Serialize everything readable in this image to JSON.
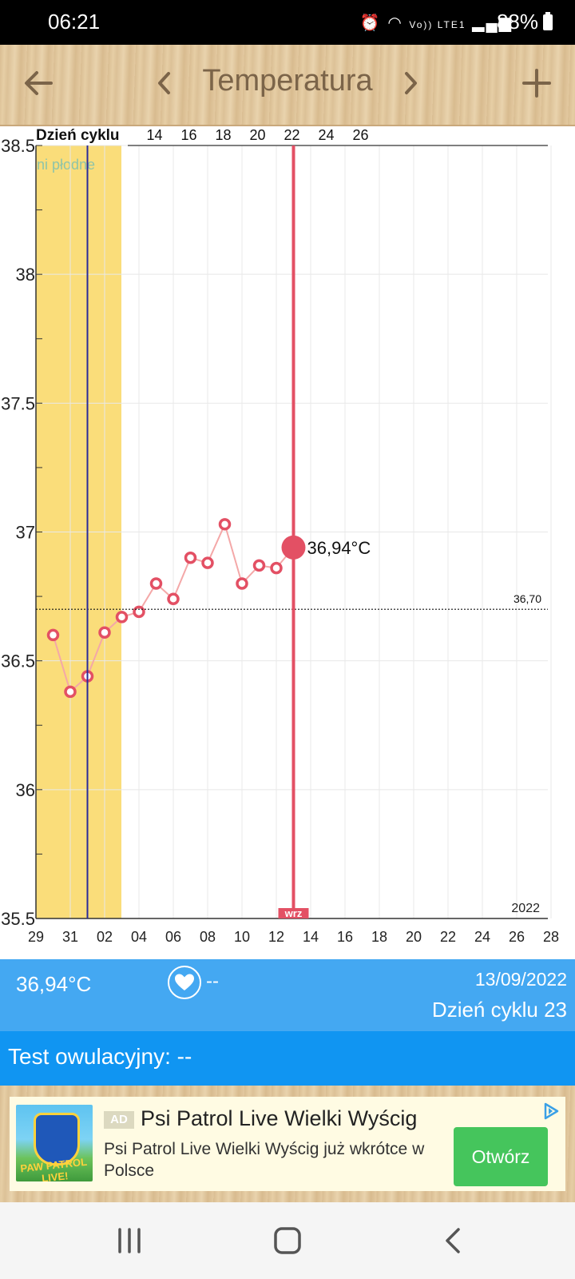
{
  "status_bar": {
    "time": "06:21",
    "network_label": "Vo)) LTE1",
    "battery": "88%"
  },
  "header": {
    "title": "Temperatura",
    "back_icon": "arrow-left-icon",
    "prev_icon": "chevron-left-icon",
    "next_icon": "chevron-right-icon",
    "add_icon": "plus-icon"
  },
  "chart_data": {
    "type": "line",
    "title": "",
    "cycle_label": "Dzień cyklu",
    "cycle_ticks": [
      "14",
      "16",
      "18",
      "20",
      "22",
      "24",
      "26"
    ],
    "fertile_label": "ni płodne",
    "x_ticks": [
      "29",
      "31",
      "02",
      "04",
      "06",
      "08",
      "10",
      "12",
      "14",
      "16",
      "18",
      "20",
      "22",
      "24",
      "26",
      "28"
    ],
    "y_ticks": [
      "35.5",
      "36",
      "36.5",
      "37",
      "37.5",
      "38",
      "38.5"
    ],
    "ylim": [
      35.5,
      38.5
    ],
    "year_label": "2022",
    "month_label": "wrz",
    "coverline": 36.7,
    "coverline_label": "36,70",
    "x": [
      "30",
      "31",
      "01",
      "02",
      "03",
      "04",
      "05",
      "06",
      "07",
      "08",
      "09",
      "10",
      "11",
      "12",
      "13"
    ],
    "values": [
      36.6,
      36.38,
      36.44,
      36.61,
      36.67,
      36.69,
      36.8,
      36.74,
      36.9,
      36.88,
      37.03,
      36.8,
      36.87,
      36.86,
      36.94
    ],
    "selected_date": "13",
    "selected_label": "36,94°C",
    "colors": {
      "fertile_band": "#fadd7a",
      "line": "#f4a8a8",
      "point": "#e35064",
      "selected_line": "#e35064",
      "ovulation_line": "#2a2a9a"
    }
  },
  "info": {
    "temperature": "36,94°C",
    "heart_value": "--",
    "date": "13/09/2022",
    "cycle_day": "Dzień cyklu 23"
  },
  "ovulation": {
    "text": "Test owulacyjny: --"
  },
  "ad": {
    "badge": "AD",
    "title": "Psi Patrol Live Wielki Wyścig",
    "description": "Psi Patrol Live Wielki Wyścig już wkrótce w Polsce",
    "cta": "Otwórz",
    "image_text": "PAW PATROL LIVE!"
  }
}
